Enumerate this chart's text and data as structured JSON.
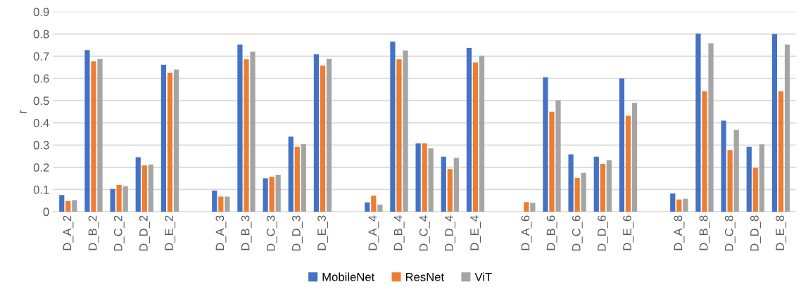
{
  "chart_data": {
    "type": "bar",
    "ylabel": "r",
    "categories": [
      "D_A_2",
      "D_B_2",
      "D_C_2",
      "D_D_2",
      "D_E_2",
      null,
      "D_A_3",
      "D_B_3",
      "D_C_3",
      "D_D_3",
      "D_E_3",
      null,
      "D_A_4",
      "D_B_4",
      "D_C_4",
      "D_D_4",
      "D_E_4",
      null,
      "D_A_6",
      "D_B_6",
      "D_C_6",
      "D_D_6",
      "D_E_6",
      null,
      "D_A_8",
      "D_B_8",
      "D_C_8",
      "D_D_8",
      "D_E_8"
    ],
    "series": [
      {
        "name": "MobileNet",
        "color": "#4472c4",
        "values": [
          0.075,
          0.727,
          0.102,
          0.245,
          0.662,
          null,
          0.095,
          0.752,
          0.15,
          0.338,
          0.708,
          null,
          0.042,
          0.765,
          0.308,
          0.248,
          0.738,
          null,
          null,
          0.605,
          0.258,
          0.248,
          0.6,
          null,
          0.082,
          0.802,
          0.41,
          0.292,
          0.8
        ]
      },
      {
        "name": "ResNet",
        "color": "#ed7d31",
        "values": [
          0.048,
          0.677,
          0.12,
          0.208,
          0.625,
          null,
          0.068,
          0.686,
          0.157,
          0.292,
          0.658,
          null,
          0.072,
          0.686,
          0.308,
          0.192,
          0.672,
          null,
          0.043,
          0.45,
          0.152,
          0.215,
          0.432,
          null,
          0.055,
          0.542,
          0.278,
          0.197,
          0.542
        ]
      },
      {
        "name": "ViT",
        "color": "#a5a5a5",
        "values": [
          0.052,
          0.687,
          0.115,
          0.212,
          0.64,
          null,
          0.068,
          0.72,
          0.165,
          0.305,
          0.688,
          null,
          0.032,
          0.726,
          0.286,
          0.242,
          0.702,
          null,
          0.04,
          0.502,
          0.175,
          0.232,
          0.49,
          null,
          0.058,
          0.758,
          0.368,
          0.303,
          0.752
        ]
      }
    ],
    "ylim": [
      0,
      0.9
    ],
    "yticks": [
      {
        "value": 0,
        "label": "0"
      },
      0.1,
      0.2,
      0.3,
      0.4,
      0.5,
      0.6,
      0.7,
      0.8,
      0.9
    ],
    "grid": "y",
    "legend": "bottom"
  }
}
